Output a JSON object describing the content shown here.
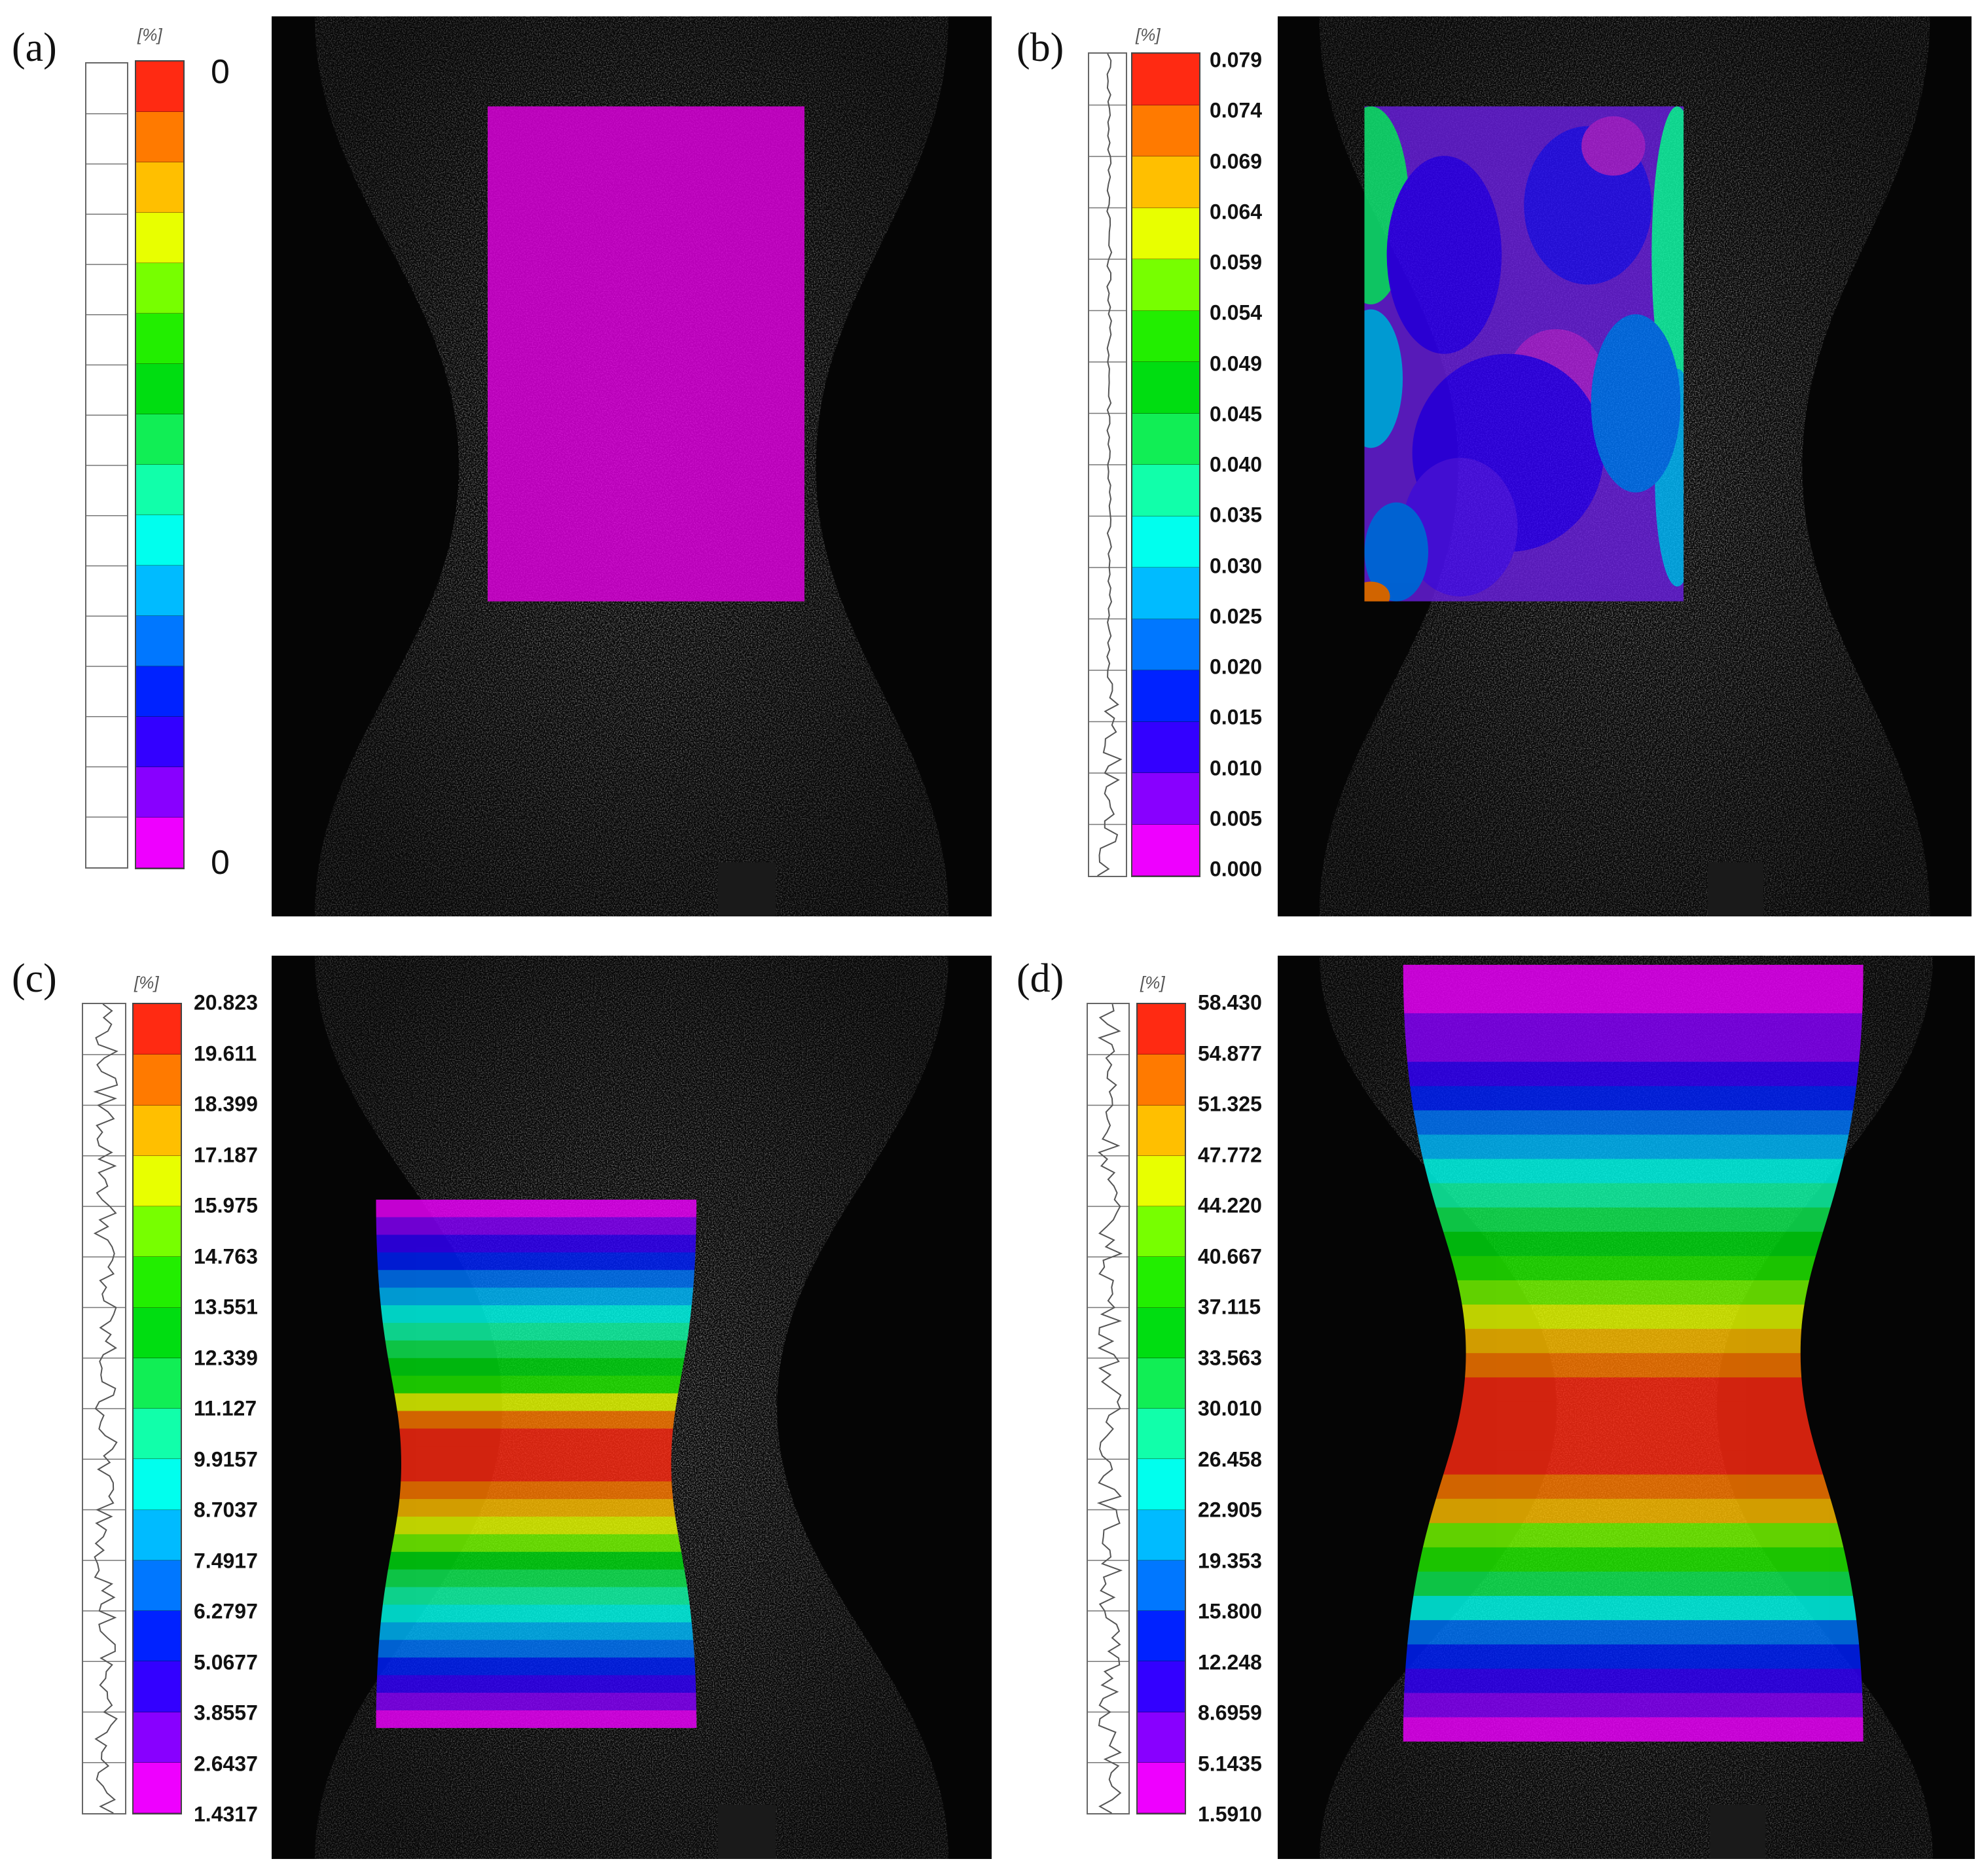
{
  "colors": [
    "#ff2a12",
    "#ff7a00",
    "#ffbf00",
    "#e8ff00",
    "#77ff00",
    "#22ee00",
    "#00dd11",
    "#11ee55",
    "#11ffaa",
    "#00ffee",
    "#00bbff",
    "#0077ff",
    "#0022ff",
    "#3300ff",
    "#8800ff",
    "#ee00ff"
  ],
  "panels": [
    {
      "label": "(a)",
      "unit": "[%]",
      "ticks": [
        "0",
        "0"
      ],
      "field": "uniform",
      "overlay_color": "#e000e0"
    },
    {
      "label": "(b)",
      "unit": "[%]",
      "ticks": [
        "0.079",
        "0.074",
        "0.069",
        "0.064",
        "0.059",
        "0.054",
        "0.049",
        "0.045",
        "0.040",
        "0.035",
        "0.030",
        "0.025",
        "0.020",
        "0.015",
        "0.010",
        "0.005",
        "0.000"
      ],
      "field": "blotchy"
    },
    {
      "label": "(c)",
      "unit": "[%]",
      "ticks": [
        "20.823",
        "19.611",
        "18.399",
        "17.187",
        "15.975",
        "14.763",
        "13.551",
        "12.339",
        "11.127",
        "9.9157",
        "8.7037",
        "7.4917",
        "6.2797",
        "5.0677",
        "3.8557",
        "2.6437",
        "1.4317"
      ],
      "field": "banded"
    },
    {
      "label": "(d)",
      "unit": "[%]",
      "ticks": [
        "58.430",
        "54.877",
        "51.325",
        "47.772",
        "44.220",
        "40.667",
        "37.115",
        "33.563",
        "30.010",
        "26.458",
        "22.905",
        "19.353",
        "15.800",
        "12.248",
        "8.6959",
        "5.1435",
        "1.5910"
      ],
      "field": "necked"
    }
  ]
}
